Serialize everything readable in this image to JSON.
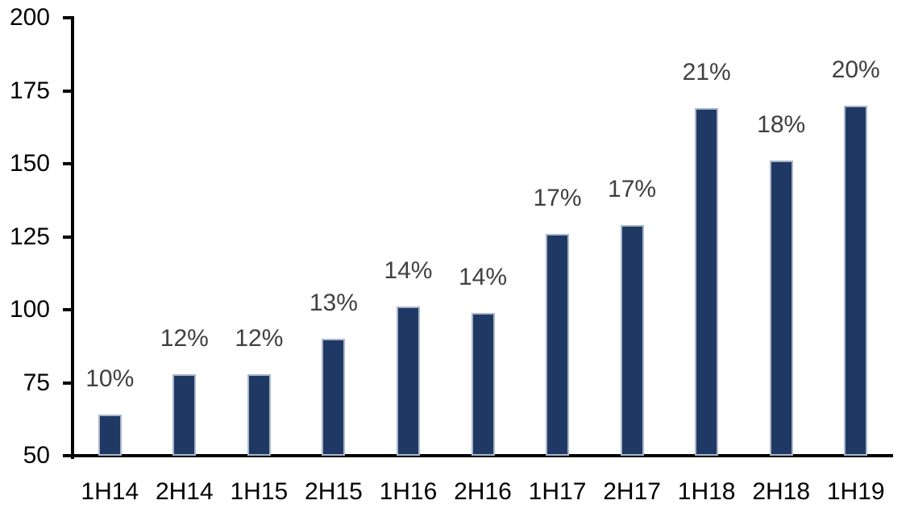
{
  "chart_data": {
    "type": "bar",
    "title": "",
    "xlabel": "",
    "ylabel": "",
    "categories": [
      "1H14",
      "2H14",
      "1H15",
      "2H15",
      "1H16",
      "2H16",
      "1H17",
      "2H17",
      "1H18",
      "2H18",
      "1H19"
    ],
    "values": [
      64,
      78,
      78,
      90,
      101,
      99,
      126,
      129,
      169,
      151,
      170
    ],
    "bar_labels": [
      "10%",
      "12%",
      "12%",
      "13%",
      "14%",
      "14%",
      "17%",
      "17%",
      "21%",
      "18%",
      "20%"
    ],
    "ylim": [
      50,
      200
    ],
    "yticks": [
      50,
      75,
      100,
      125,
      150,
      175,
      200
    ],
    "grid": false,
    "legend": false,
    "colors": {
      "bar_fill": "#203864",
      "bar_border": "#a9b7c9",
      "axis": "#000000",
      "axis_tick_label": "#000000",
      "data_label": "#404040",
      "background": "#ffffff"
    }
  }
}
